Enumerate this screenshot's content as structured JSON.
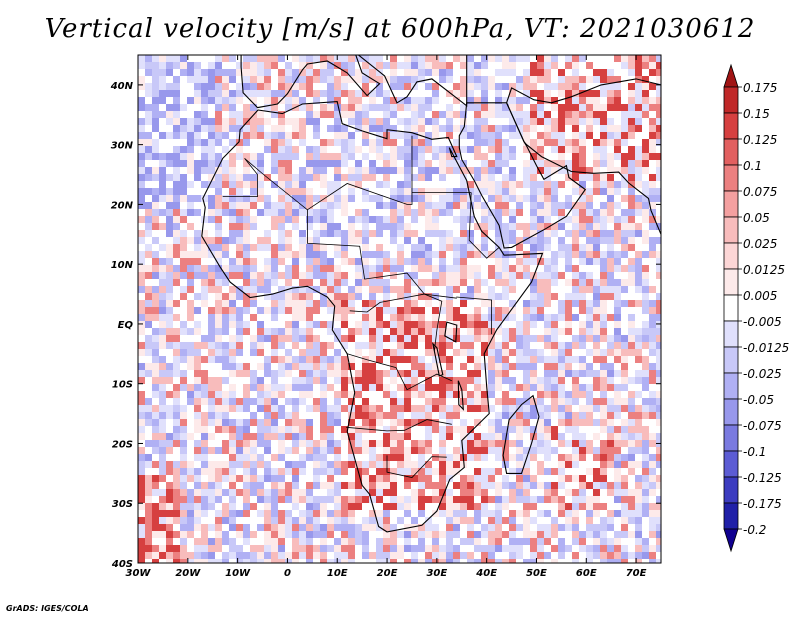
{
  "title": "Vertical velocity [m/s] at 600hPa, VT: 2021030612",
  "credit": "GrADS: IGES/COLA",
  "chart_data": {
    "type": "heatmap",
    "variable": "Vertical velocity",
    "units": "m/s",
    "level": "600hPa",
    "valid_time": "2021030612",
    "x_axis": {
      "range": [
        -30,
        75
      ],
      "ticks": [
        -30,
        -20,
        -10,
        0,
        10,
        20,
        30,
        40,
        50,
        60,
        70
      ],
      "tick_labels": [
        "30W",
        "20W",
        "10W",
        "0",
        "10E",
        "20E",
        "30E",
        "40E",
        "50E",
        "60E",
        "70E"
      ]
    },
    "y_axis": {
      "range": [
        -40,
        45
      ],
      "ticks": [
        40,
        30,
        20,
        10,
        0,
        -10,
        -20,
        -30,
        -40
      ],
      "tick_labels": [
        "40N",
        "30N",
        "20N",
        "10N",
        "EQ",
        "10S",
        "20S",
        "30S",
        "40S"
      ]
    },
    "colorbar": {
      "levels": [
        "0.175",
        "0.15",
        "0.125",
        "0.1",
        "0.075",
        "0.05",
        "0.025",
        "0.0125",
        "0.005",
        "-0.005",
        "-0.0125",
        "-0.025",
        "-0.05",
        "-0.075",
        "-0.1",
        "-0.125",
        "-0.175",
        "-0.2"
      ],
      "colors": [
        "#a01414",
        "#c02828",
        "#d64040",
        "#e26060",
        "#ec8080",
        "#f4a0a0",
        "#f8bcbc",
        "#fcd6d6",
        "#fdeaea",
        "#ffffff",
        "#e0e0fc",
        "#c8c8f8",
        "#b0b0f4",
        "#9898ec",
        "#7a7ae0",
        "#5c5cd4",
        "#3c3cc0",
        "#2020a8",
        "#100090"
      ]
    }
  }
}
